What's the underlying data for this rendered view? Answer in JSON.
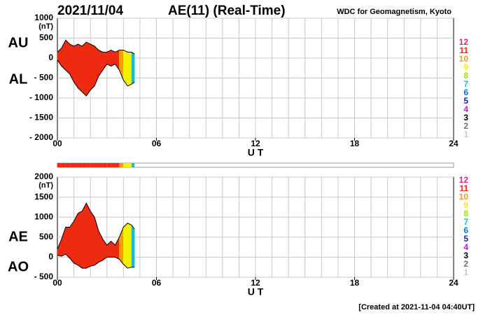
{
  "header": {
    "date": "2021/11/04",
    "title": "AE(11) (Real-Time)",
    "source": "WDC for Geomagnetism, Kyoto"
  },
  "footer": "[Created at 2021-11-04 04:40UT]",
  "chart_data": [
    {
      "type": "line",
      "x": [
        0,
        0.25,
        0.5,
        0.75,
        1,
        1.25,
        1.5,
        1.75,
        2,
        2.25,
        2.5,
        2.75,
        3,
        3.25,
        3.5,
        3.75,
        4,
        4.25,
        4.5,
        4.67
      ],
      "series": [
        {
          "name": "AU",
          "color": "#000000",
          "values": [
            150,
            250,
            450,
            350,
            300,
            350,
            300,
            400,
            350,
            300,
            200,
            150,
            150,
            200,
            150,
            200,
            200,
            150,
            150,
            100
          ]
        },
        {
          "name": "AL",
          "color": "#000000",
          "values": [
            -50,
            -200,
            -300,
            -400,
            -600,
            -750,
            -850,
            -950,
            -800,
            -700,
            -450,
            -300,
            -150,
            -200,
            -150,
            -300,
            -550,
            -700,
            -650,
            -600
          ]
        }
      ],
      "ylabel": "(nT)",
      "xlabel": "U T",
      "xlim": [
        0,
        24
      ],
      "ylim": [
        -2000,
        1000
      ],
      "xticks": [
        {
          "value": 0,
          "label": "00"
        },
        {
          "value": 6,
          "label": "06"
        },
        12,
        18,
        24
      ],
      "yticks": [
        1000,
        500,
        0,
        {
          "value": -500,
          "label": "- 500"
        },
        {
          "value": -1000,
          "label": "- 1000"
        },
        {
          "value": -1500,
          "label": "- 1500"
        },
        {
          "value": -2000,
          "label": "- 2000"
        }
      ],
      "grid": true,
      "minor_step": 1
    },
    {
      "type": "line",
      "x": [
        0,
        0.25,
        0.5,
        0.75,
        1,
        1.25,
        1.5,
        1.75,
        2,
        2.25,
        2.5,
        2.75,
        3,
        3.25,
        3.5,
        3.75,
        4,
        4.25,
        4.5,
        4.67
      ],
      "series": [
        {
          "name": "AE",
          "color": "#000000",
          "values": [
            200,
            450,
            750,
            750,
            900,
            1100,
            1150,
            1350,
            1150,
            1000,
            650,
            450,
            300,
            400,
            300,
            500,
            750,
            850,
            800,
            700
          ]
        },
        {
          "name": "AO",
          "color": "#000000",
          "values": [
            50,
            25,
            75,
            -25,
            -150,
            -200,
            -275,
            -275,
            -225,
            -200,
            -125,
            -75,
            0,
            0,
            0,
            -50,
            -175,
            -275,
            -250,
            -250
          ]
        }
      ],
      "ylabel": "(nT)",
      "xlabel": "U T",
      "xlim": [
        0,
        24
      ],
      "ylim": [
        -500,
        2000
      ],
      "xticks": [
        {
          "value": 0,
          "label": "00"
        },
        {
          "value": 6,
          "label": "06"
        },
        12,
        18,
        24
      ],
      "yticks": [
        2000,
        1500,
        1000,
        500,
        0,
        {
          "value": -500,
          "label": "- 500"
        }
      ],
      "grid": true,
      "minor_step": 1
    }
  ],
  "coverage": {
    "stations": [
      11,
      11,
      11,
      11,
      11,
      11,
      11,
      11,
      11,
      11,
      11,
      11,
      11,
      11,
      11,
      10,
      9,
      9,
      7
    ],
    "legend": [
      12,
      11,
      10,
      9,
      8,
      7,
      6,
      5,
      4,
      3,
      2,
      1
    ],
    "colors": [
      "#e8207f",
      "#ee2a10",
      "#f5a000",
      "#f0f000",
      "#a0e000",
      "#10c0c8",
      "#1070e0",
      "#2020b0",
      "#c020c0",
      "#000000",
      "#707070",
      "#c8c8c8"
    ]
  }
}
